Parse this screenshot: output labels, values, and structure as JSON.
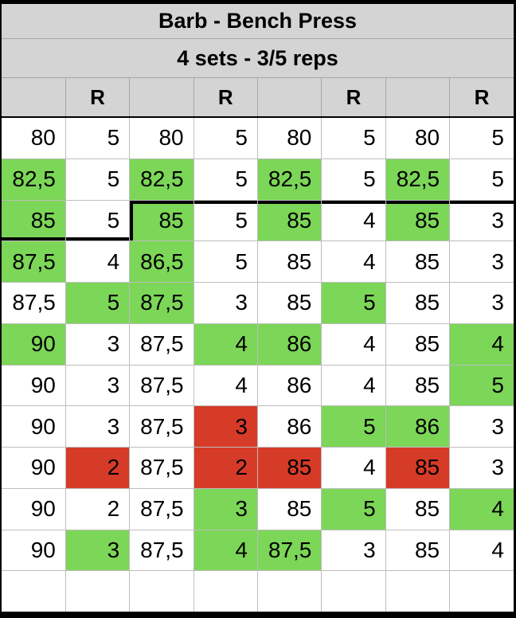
{
  "table": {
    "title": "Barb - Bench Press",
    "subtitle": "4 sets - 3/5 reps",
    "columns": [
      "",
      "R",
      "",
      "R",
      "",
      "R",
      "",
      "R"
    ],
    "rows": [
      [
        {
          "v": "80"
        },
        {
          "v": "5"
        },
        {
          "v": "80"
        },
        {
          "v": "5"
        },
        {
          "v": "80"
        },
        {
          "v": "5"
        },
        {
          "v": "80"
        },
        {
          "v": "5"
        }
      ],
      [
        {
          "v": "82,5",
          "bg": "g"
        },
        {
          "v": "5"
        },
        {
          "v": "82,5",
          "bg": "g"
        },
        {
          "v": "5"
        },
        {
          "v": "82,5",
          "bg": "g"
        },
        {
          "v": "5"
        },
        {
          "v": "82,5",
          "bg": "g"
        },
        {
          "v": "5"
        }
      ],
      [
        {
          "v": "85",
          "bg": "g",
          "bd": "b"
        },
        {
          "v": "5",
          "bd": "b"
        },
        {
          "v": "85",
          "bg": "g",
          "bd": "tl"
        },
        {
          "v": "5",
          "bd": "t"
        },
        {
          "v": "85",
          "bg": "g",
          "bd": "t"
        },
        {
          "v": "4",
          "bd": "t"
        },
        {
          "v": "85",
          "bg": "g",
          "bd": "t"
        },
        {
          "v": "3",
          "bd": "t"
        }
      ],
      [
        {
          "v": "87,5",
          "bg": "g"
        },
        {
          "v": "4"
        },
        {
          "v": "86,5",
          "bg": "g"
        },
        {
          "v": "5"
        },
        {
          "v": "85"
        },
        {
          "v": "4"
        },
        {
          "v": "85"
        },
        {
          "v": "3"
        }
      ],
      [
        {
          "v": "87,5"
        },
        {
          "v": "5",
          "bg": "g"
        },
        {
          "v": "87,5",
          "bg": "g"
        },
        {
          "v": "3"
        },
        {
          "v": "85"
        },
        {
          "v": "5",
          "bg": "g"
        },
        {
          "v": "85"
        },
        {
          "v": "3"
        }
      ],
      [
        {
          "v": "90",
          "bg": "g"
        },
        {
          "v": "3"
        },
        {
          "v": "87,5"
        },
        {
          "v": "4",
          "bg": "g"
        },
        {
          "v": "86",
          "bg": "g"
        },
        {
          "v": "4"
        },
        {
          "v": "85"
        },
        {
          "v": "4",
          "bg": "g"
        }
      ],
      [
        {
          "v": "90"
        },
        {
          "v": "3"
        },
        {
          "v": "87,5"
        },
        {
          "v": "4"
        },
        {
          "v": "86"
        },
        {
          "v": "4"
        },
        {
          "v": "85"
        },
        {
          "v": "5",
          "bg": "g"
        }
      ],
      [
        {
          "v": "90"
        },
        {
          "v": "3"
        },
        {
          "v": "87,5"
        },
        {
          "v": "3",
          "bg": "r"
        },
        {
          "v": "86"
        },
        {
          "v": "5",
          "bg": "g"
        },
        {
          "v": "86",
          "bg": "g"
        },
        {
          "v": "3"
        }
      ],
      [
        {
          "v": "90"
        },
        {
          "v": "2",
          "bg": "r"
        },
        {
          "v": "87,5"
        },
        {
          "v": "2",
          "bg": "r"
        },
        {
          "v": "85",
          "bg": "r"
        },
        {
          "v": "4"
        },
        {
          "v": "85",
          "bg": "r"
        },
        {
          "v": "3"
        }
      ],
      [
        {
          "v": "90"
        },
        {
          "v": "2"
        },
        {
          "v": "87,5"
        },
        {
          "v": "3",
          "bg": "g"
        },
        {
          "v": "85"
        },
        {
          "v": "5",
          "bg": "g"
        },
        {
          "v": "85"
        },
        {
          "v": "4",
          "bg": "g"
        }
      ],
      [
        {
          "v": "90"
        },
        {
          "v": "3",
          "bg": "g"
        },
        {
          "v": "87,5"
        },
        {
          "v": "4",
          "bg": "g"
        },
        {
          "v": "87,5",
          "bg": "g"
        },
        {
          "v": "3"
        },
        {
          "v": "85"
        },
        {
          "v": "4"
        }
      ],
      [
        {
          "v": ""
        },
        {
          "v": ""
        },
        {
          "v": ""
        },
        {
          "v": ""
        },
        {
          "v": ""
        },
        {
          "v": ""
        },
        {
          "v": ""
        },
        {
          "v": ""
        }
      ]
    ]
  },
  "colors": {
    "green": "#7cd657",
    "red": "#d63b28",
    "header_bg": "#d4d4d4",
    "grid_line": "#bdbdbd",
    "step_line": "#000000"
  }
}
